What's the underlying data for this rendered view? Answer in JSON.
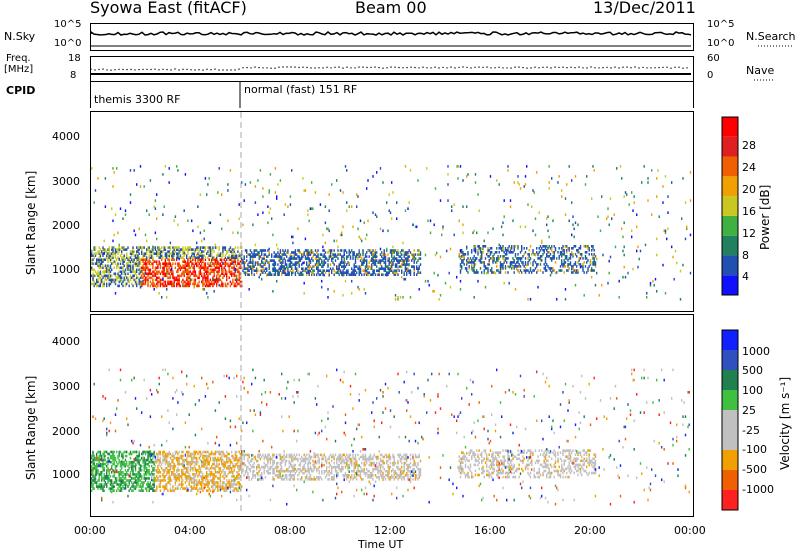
{
  "header": {
    "title": "Syowa East (fitACF)",
    "beam": "Beam 00",
    "date": "13/Dec/2011"
  },
  "nsky": {
    "label": "N.Sky",
    "left_ticks": [
      "10^5",
      "10^0"
    ],
    "right_ticks": [
      "10^5",
      "10^0"
    ],
    "right_label": "N.Search"
  },
  "freq": {
    "label_top": "Freq.",
    "label_unit": "[MHz]",
    "left_ticks": [
      "18",
      "8"
    ],
    "right_ticks": [
      "60",
      "0"
    ],
    "right_label": "Nave"
  },
  "cpid": {
    "label": "CPID",
    "modes": [
      {
        "name": "themis 3300 RF",
        "start_hour": 0
      },
      {
        "name": "normal (fast) 151 RF",
        "start_hour": 6
      }
    ]
  },
  "chart_data": [
    {
      "type": "heatmap",
      "name": "power-panel",
      "ylabel": "Slant Range [km]",
      "yticks": [
        1000,
        2000,
        3000,
        4000
      ],
      "ylim": [
        200,
        4600
      ],
      "xticks": [
        "00:00",
        "04:00",
        "08:00",
        "12:00",
        "16:00",
        "20:00",
        "00:00"
      ],
      "xlim": [
        0,
        24
      ],
      "colorbar": {
        "label": "Power [dB]",
        "ticks": [
          "4",
          "8",
          "12",
          "16",
          "20",
          "24",
          "28"
        ],
        "colors": [
          "#1010ff",
          "#2050b0",
          "#208060",
          "#40b040",
          "#c8c820",
          "#f0a000",
          "#f06000",
          "#e02020",
          "#ff0000"
        ]
      }
    },
    {
      "type": "heatmap",
      "name": "velocity-panel",
      "ylabel": "Slant Range [km]",
      "yticks": [
        1000,
        2000,
        3000,
        4000
      ],
      "ylim": [
        200,
        4600
      ],
      "xticks": [
        "00:00",
        "04:00",
        "08:00",
        "12:00",
        "16:00",
        "20:00",
        "00:00"
      ],
      "xlim": [
        0,
        24
      ],
      "xlabel": "Time UT",
      "colorbar": {
        "label": "Velocity [m s⁻¹]",
        "ticks": [
          "1000",
          "500",
          "100",
          "25",
          "-25",
          "-100",
          "-500",
          "-1000"
        ],
        "colors": [
          "#1020ff",
          "#3050c0",
          "#208050",
          "#40c040",
          "#c0c0c0",
          "#c0c0c0",
          "#f0a000",
          "#f06000",
          "#ff2020"
        ]
      }
    }
  ]
}
